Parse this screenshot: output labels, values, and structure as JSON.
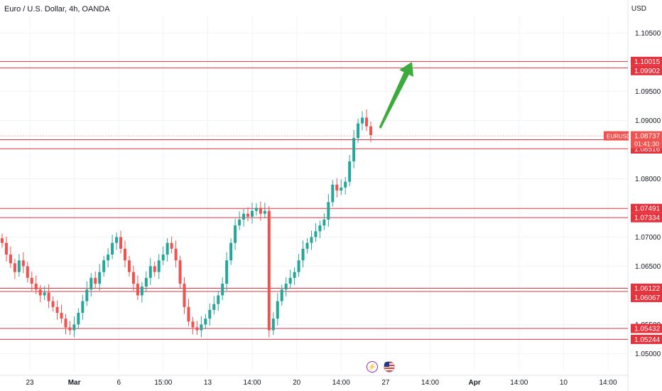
{
  "header": {
    "symbol_title": "Euro / U.S. Dollar, 4h, OANDA",
    "currency": "USD"
  },
  "events": {
    "flash_icon": "lightning-icon",
    "flag_icon": "us-flag-icon"
  },
  "chart_data": {
    "type": "candlestick",
    "symbol": "EURUSD",
    "timeframe": "4h",
    "ylim": [
      1.047,
      1.108
    ],
    "y_ticks": [
      1.105,
      1.095,
      1.09,
      1.08,
      1.07,
      1.065,
      1.055,
      1.05
    ],
    "x_ticks": [
      "23",
      "Mar",
      "6",
      "15:00",
      "13",
      "14:00",
      "20",
      "14:00",
      "27",
      "14:00",
      "Apr",
      "14:00",
      "10",
      "14:00"
    ],
    "current_price": {
      "label": "EURUSD",
      "value": "1.08737",
      "countdown": "01:41:30"
    },
    "levels": [
      {
        "value": 1.10015,
        "label": "1.10015"
      },
      {
        "value": 1.09902,
        "label": "1.09902"
      },
      {
        "value": 1.08671,
        "label": "1.08671"
      },
      {
        "value": 1.08516,
        "label": "1.08516"
      },
      {
        "value": 1.07491,
        "label": "1.07491"
      },
      {
        "value": 1.07334,
        "label": "1.07334"
      },
      {
        "value": 1.06122,
        "label": "1.06122"
      },
      {
        "value": 1.06067,
        "label": "1.06067"
      },
      {
        "value": 1.05432,
        "label": "1.05432"
      },
      {
        "value": 1.05244,
        "label": "1.05244"
      }
    ],
    "close_path": [
      1.069,
      1.067,
      1.0655,
      1.064,
      1.066,
      1.065,
      1.063,
      1.062,
      1.061,
      1.06,
      1.0605,
      1.059,
      1.058,
      1.057,
      1.056,
      1.0545,
      1.054,
      1.055,
      1.057,
      1.059,
      1.061,
      1.063,
      1.062,
      1.064,
      1.066,
      1.067,
      1.069,
      1.07,
      1.068,
      1.066,
      1.064,
      1.062,
      1.06,
      1.0615,
      1.063,
      1.065,
      1.064,
      1.066,
      1.067,
      1.069,
      1.068,
      1.066,
      1.062,
      1.058,
      1.0555,
      1.0545,
      1.054,
      1.055,
      1.056,
      1.0575,
      1.0585,
      1.06,
      1.062,
      1.066,
      1.069,
      1.072,
      1.073,
      1.074,
      1.0735,
      1.0745,
      1.075,
      1.074,
      1.0745,
      1.054,
      1.056,
      1.059,
      1.061,
      1.062,
      1.063,
      1.064,
      1.066,
      1.068,
      1.069,
      1.07,
      1.071,
      1.072,
      1.073,
      1.076,
      1.079,
      1.078,
      1.0785,
      1.0795,
      1.083,
      1.087,
      1.0895,
      1.0905,
      1.089,
      1.0875
    ],
    "arrow": {
      "direction": "up",
      "color": "#3cab3c"
    }
  },
  "colors": {
    "level": "#e5323d",
    "up": "#26a69a",
    "down": "#ef5350",
    "grid": "#f0f3fa",
    "axis_text": "#131722"
  }
}
